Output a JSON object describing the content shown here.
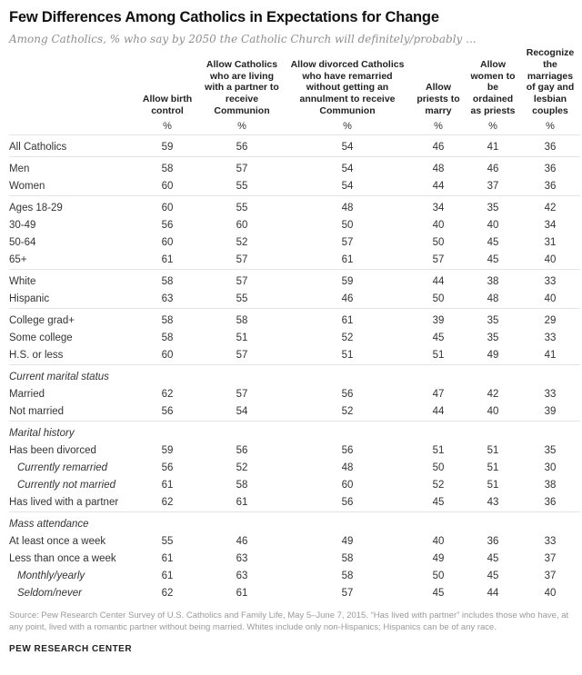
{
  "header": {
    "title": "Few Differences Among Catholics in Expectations for Change",
    "subtitle": "Among Catholics, % who say by 2050 the Catholic Church will definitely/probably ..."
  },
  "chart_data": {
    "type": "table",
    "title": "Few Differences Among Catholics in Expectations for Change",
    "unit": "%",
    "columns": [
      "Allow birth control",
      "Allow Catholics who are living with a partner to receive Communion",
      "Allow divorced Catholics who have remarried without getting an annulment to receive Communion",
      "Allow priests to marry",
      "Allow women to be ordained as priests",
      "Recognize the marriages of gay and lesbian couples"
    ],
    "rows": [
      {
        "label": "All Catholics",
        "values": [
          59,
          56,
          54,
          46,
          41,
          36
        ],
        "group_start": true
      },
      {
        "label": "Men",
        "values": [
          58,
          57,
          54,
          48,
          46,
          36
        ],
        "group_start": true
      },
      {
        "label": "Women",
        "values": [
          60,
          55,
          54,
          44,
          37,
          36
        ]
      },
      {
        "label": "Ages 18-29",
        "values": [
          60,
          55,
          48,
          34,
          35,
          42
        ],
        "group_start": true
      },
      {
        "label": "30-49",
        "values": [
          56,
          60,
          50,
          40,
          40,
          34
        ]
      },
      {
        "label": "50-64",
        "values": [
          60,
          52,
          57,
          50,
          45,
          31
        ]
      },
      {
        "label": "65+",
        "values": [
          61,
          57,
          61,
          57,
          45,
          40
        ]
      },
      {
        "label": "White",
        "values": [
          58,
          57,
          59,
          44,
          38,
          33
        ],
        "group_start": true
      },
      {
        "label": "Hispanic",
        "values": [
          63,
          55,
          46,
          50,
          48,
          40
        ]
      },
      {
        "label": "College grad+",
        "values": [
          58,
          58,
          61,
          39,
          35,
          29
        ],
        "group_start": true
      },
      {
        "label": "Some college",
        "values": [
          58,
          51,
          52,
          45,
          35,
          33
        ]
      },
      {
        "label": "H.S. or less",
        "values": [
          60,
          57,
          51,
          51,
          49,
          41
        ]
      },
      {
        "label": "Current marital status",
        "type": "section",
        "group_start": true
      },
      {
        "label": "Married",
        "values": [
          62,
          57,
          56,
          47,
          42,
          33
        ]
      },
      {
        "label": "Not married",
        "values": [
          56,
          54,
          52,
          44,
          40,
          39
        ]
      },
      {
        "label": "Marital history",
        "type": "section",
        "group_start": true
      },
      {
        "label": "Has been divorced",
        "values": [
          59,
          56,
          56,
          51,
          51,
          35
        ]
      },
      {
        "label": "Currently remarried",
        "values": [
          56,
          52,
          48,
          50,
          51,
          30
        ],
        "type": "sub"
      },
      {
        "label": "Currently not married",
        "values": [
          61,
          58,
          60,
          52,
          51,
          38
        ],
        "type": "sub"
      },
      {
        "label": "Has lived with a partner",
        "values": [
          62,
          61,
          56,
          45,
          43,
          36
        ]
      },
      {
        "label": "Mass attendance",
        "type": "section",
        "group_start": true
      },
      {
        "label": "At least once a week",
        "values": [
          55,
          46,
          49,
          40,
          36,
          33
        ]
      },
      {
        "label": "Less than once a week",
        "values": [
          61,
          63,
          58,
          49,
          45,
          37
        ]
      },
      {
        "label": "Monthly/yearly",
        "values": [
          61,
          63,
          58,
          50,
          45,
          37
        ],
        "type": "sub"
      },
      {
        "label": "Seldom/never",
        "values": [
          62,
          61,
          57,
          45,
          44,
          40
        ],
        "type": "sub"
      }
    ]
  },
  "footer": {
    "source": "Source: Pew Research Center Survey of U.S. Catholics and Family Life, May 5–June 7, 2015. “Has lived with partner” includes those who have, at any point, lived with a romantic partner without being married. Whites include only non-Hispanics; Hispanics can be of any race.",
    "brand": "PEW RESEARCH CENTER"
  }
}
